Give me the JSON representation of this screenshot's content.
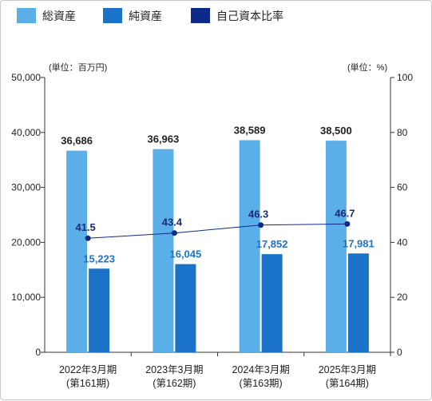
{
  "chart_data": {
    "type": "bar",
    "categories": [
      [
        "2022年3月期",
        "(第161期)"
      ],
      [
        "2023年3月期",
        "(第162期)"
      ],
      [
        "2024年3月期",
        "(第163期)"
      ],
      [
        "2025年3月期",
        "(第164期)"
      ]
    ],
    "series": [
      {
        "name": "総資産",
        "type": "bar",
        "axis": "left",
        "color": "#5aafe8",
        "values": [
          36686,
          36963,
          38589,
          38500
        ],
        "labels": [
          "36,686",
          "36,963",
          "38,589",
          "38,500"
        ]
      },
      {
        "name": "純資産",
        "type": "bar",
        "axis": "left",
        "color": "#1a73c9",
        "values": [
          15223,
          16045,
          17852,
          17981
        ],
        "labels": [
          "15,223",
          "16,045",
          "17,852",
          "17,981"
        ]
      },
      {
        "name": "自己資本比率",
        "type": "line",
        "axis": "right",
        "color": "#0d2a8a",
        "values": [
          41.5,
          43.4,
          46.3,
          46.7
        ],
        "labels": [
          "41.5",
          "43.4",
          "46.3",
          "46.7"
        ]
      }
    ],
    "left_axis": {
      "unit_label": "(単位：百万円)",
      "range": [
        0,
        50000
      ],
      "ticks": [
        0,
        10000,
        20000,
        30000,
        40000,
        50000
      ],
      "tick_labels": [
        "0",
        "10,000",
        "20,000",
        "30,000",
        "40,000",
        "50,000"
      ]
    },
    "right_axis": {
      "unit_label": "(単位：%)",
      "range": [
        0,
        100
      ],
      "ticks": [
        0,
        20,
        40,
        60,
        80,
        100
      ],
      "tick_labels": [
        "0",
        "20",
        "40",
        "60",
        "80",
        "100"
      ]
    },
    "legend_position": "top-left",
    "grid": false
  }
}
